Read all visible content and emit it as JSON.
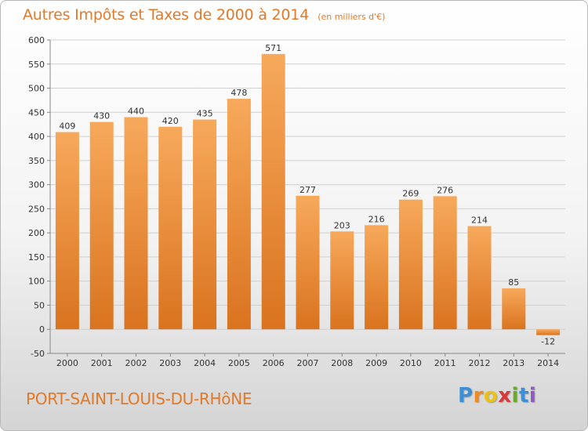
{
  "header": {
    "title": "Autres Impôts et Taxes de 2000 à 2014",
    "subtitle": "(en milliers d'€)"
  },
  "footer": {
    "location": "PORT-SAINT-LOUIS-DU-RHôNE",
    "brand_letters": [
      "P",
      "r",
      "o",
      "x",
      "i",
      "t",
      "i"
    ],
    "brand_colors": [
      "#3b8fd6",
      "#f08a1c",
      "#e8c21a",
      "#d63a3a",
      "#6aaa2a",
      "#3b8fd6",
      "#8d5bc0"
    ]
  },
  "colors": {
    "bar_light": "#f7a95b",
    "bar_dark": "#d9731f",
    "title": "#e07a2a",
    "grid": "#d0d0d0"
  },
  "chart_data": {
    "type": "bar",
    "categories": [
      "2000",
      "2001",
      "2002",
      "2003",
      "2004",
      "2005",
      "2006",
      "2007",
      "2008",
      "2009",
      "2010",
      "2011",
      "2012",
      "2013",
      "2014"
    ],
    "values": [
      409,
      430,
      440,
      420,
      435,
      478,
      571,
      277,
      203,
      216,
      269,
      276,
      214,
      85,
      -12
    ],
    "value_labels": [
      "409",
      "430",
      "440",
      "420",
      "435",
      "478",
      "571",
      "277",
      "203",
      "216",
      "269",
      "276",
      "214",
      "85",
      "-12"
    ],
    "yticks": [
      "-50",
      "0",
      "50",
      "100",
      "150",
      "200",
      "250",
      "300",
      "350",
      "400",
      "450",
      "500",
      "550",
      "600"
    ],
    "ylim": [
      -50,
      600
    ],
    "grid": true,
    "legend": "none"
  }
}
